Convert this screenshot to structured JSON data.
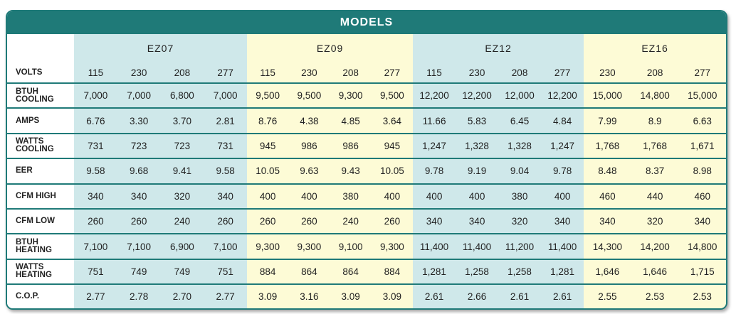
{
  "header": {
    "title": "MODELS"
  },
  "models": [
    {
      "name": "EZ07",
      "volts": [
        "115",
        "230",
        "208",
        "277"
      ]
    },
    {
      "name": "EZ09",
      "volts": [
        "115",
        "230",
        "208",
        "277"
      ]
    },
    {
      "name": "EZ12",
      "volts": [
        "115",
        "230",
        "208",
        "277"
      ]
    },
    {
      "name": "EZ16",
      "volts": [
        "230",
        "208",
        "277"
      ]
    }
  ],
  "volts_label": "VOLTS",
  "rows": [
    {
      "label": "BTUH\nCOOLING",
      "values": [
        "7,000",
        "7,000",
        "6,800",
        "7,000",
        "9,500",
        "9,500",
        "9,300",
        "9,500",
        "12,200",
        "12,200",
        "12,000",
        "12,200",
        "15,000",
        "14,800",
        "15,000"
      ]
    },
    {
      "label": "AMPS",
      "values": [
        "6.76",
        "3.30",
        "3.70",
        "2.81",
        "8.76",
        "4.38",
        "4.85",
        "3.64",
        "11.66",
        "5.83",
        "6.45",
        "4.84",
        "7.99",
        "8.9",
        "6.63"
      ]
    },
    {
      "label": "WATTS\nCOOLING",
      "values": [
        "731",
        "723",
        "723",
        "731",
        "945",
        "986",
        "986",
        "945",
        "1,247",
        "1,328",
        "1,328",
        "1,247",
        "1,768",
        "1,768",
        "1,671"
      ]
    },
    {
      "label": "EER",
      "values": [
        "9.58",
        "9.68",
        "9.41",
        "9.58",
        "10.05",
        "9.63",
        "9.43",
        "10.05",
        "9.78",
        "9.19",
        "9.04",
        "9.78",
        "8.48",
        "8.37",
        "8.98"
      ]
    },
    {
      "label": "CFM HIGH",
      "values": [
        "340",
        "340",
        "320",
        "340",
        "400",
        "400",
        "380",
        "400",
        "400",
        "400",
        "380",
        "400",
        "460",
        "440",
        "460"
      ]
    },
    {
      "label": "CFM LOW",
      "values": [
        "260",
        "260",
        "240",
        "260",
        "260",
        "260",
        "240",
        "260",
        "340",
        "340",
        "320",
        "340",
        "340",
        "320",
        "340"
      ]
    },
    {
      "label": "BTUH\nHEATING",
      "values": [
        "7,100",
        "7,100",
        "6,900",
        "7,100",
        "9,300",
        "9,300",
        "9,100",
        "9,300",
        "11,400",
        "11,400",
        "11,200",
        "11,400",
        "14,300",
        "14,200",
        "14,800"
      ]
    },
    {
      "label": "WATTS\nHEATING",
      "values": [
        "751",
        "749",
        "749",
        "751",
        "884",
        "864",
        "864",
        "884",
        "1,281",
        "1,258",
        "1,258",
        "1,281",
        "1,646",
        "1,646",
        "1,715"
      ]
    },
    {
      "label": "C.O.P.",
      "values": [
        "2.77",
        "2.78",
        "2.70",
        "2.77",
        "3.09",
        "3.16",
        "3.09",
        "3.09",
        "2.61",
        "2.66",
        "2.61",
        "2.61",
        "2.55",
        "2.53",
        "2.53"
      ]
    }
  ]
}
